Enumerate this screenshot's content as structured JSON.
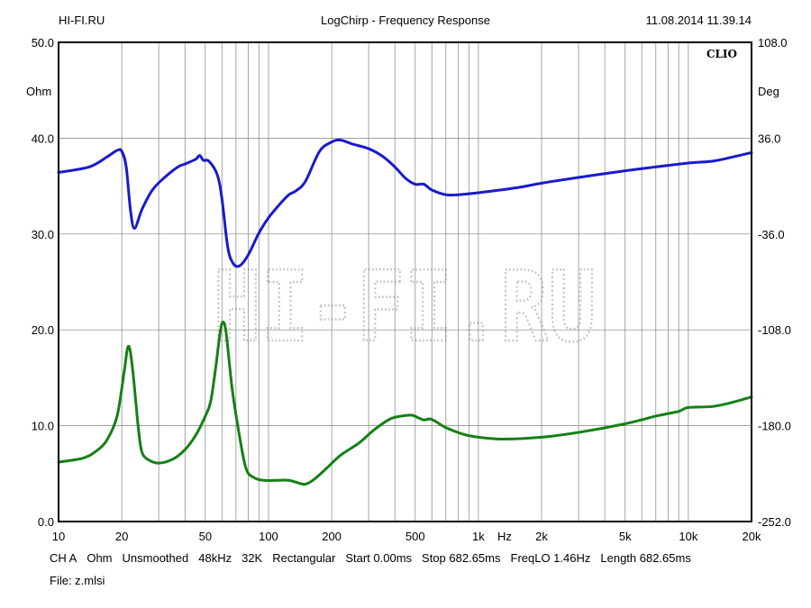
{
  "header": {
    "brand": "HI-FI.RU",
    "title": "LogChirp - Frequency Response",
    "datetime": "11.08.2014 11.39.14"
  },
  "badge": "CLIO",
  "watermark": "HI-FI.RU",
  "footer": {
    "items": [
      "CH A",
      "Ohm",
      "Unsmoothed",
      "48kHz",
      "32K",
      "Rectangular",
      "Start 0.00ms",
      "Stop 682.65ms",
      "FreqLO 1.46Hz",
      "Length 682.65ms"
    ],
    "file": "File: z.mlsi"
  },
  "colors": {
    "impedance": "#1a1acc",
    "phase": "#158015",
    "grid": "#808080"
  },
  "chart_data": {
    "type": "line",
    "x_scale": "log",
    "xlim": [
      10,
      20000
    ],
    "ylim": [
      0,
      50
    ],
    "y2lim": [
      -252,
      108
    ],
    "xlabel": "Hz",
    "ylabel": "Ohm",
    "y2label": "Deg",
    "grid": true,
    "x_ticks": [
      {
        "v": 10,
        "label": "10"
      },
      {
        "v": 20,
        "label": "20"
      },
      {
        "v": 50,
        "label": "50"
      },
      {
        "v": 100,
        "label": "100"
      },
      {
        "v": 200,
        "label": "200"
      },
      {
        "v": 500,
        "label": "500"
      },
      {
        "v": 1000,
        "label": "1k"
      },
      {
        "v": 2000,
        "label": "2k"
      },
      {
        "v": 5000,
        "label": "5k"
      },
      {
        "v": 10000,
        "label": "10k"
      },
      {
        "v": 20000,
        "label": "20k"
      }
    ],
    "y_ticks": [
      "0.0",
      "10.0",
      "20.0",
      "30.0",
      "40.0",
      "50.0"
    ],
    "y2_ticks": [
      "-252.0",
      "-180.0",
      "-108.0",
      "-36.0",
      "36.0",
      "108.0"
    ],
    "series": [
      {
        "axis": "right",
        "points": [
          [
            10,
            10.3
          ],
          [
            14,
            14.4
          ],
          [
            17,
            21.9
          ],
          [
            19,
            26.8
          ],
          [
            20,
            26.1
          ],
          [
            21,
            14.4
          ],
          [
            22,
            -18.0
          ],
          [
            23,
            -31.7
          ],
          [
            25,
            -17.3
          ],
          [
            28,
            -2.9
          ],
          [
            32,
            6.5
          ],
          [
            37,
            14.4
          ],
          [
            40,
            16.6
          ],
          [
            45,
            20.2
          ],
          [
            47,
            23.0
          ],
          [
            49,
            19.4
          ],
          [
            52,
            18.7
          ],
          [
            57,
            8.6
          ],
          [
            60,
            -9.4
          ],
          [
            64,
            -46.1
          ],
          [
            68,
            -58.3
          ],
          [
            73,
            -59.8
          ],
          [
            80,
            -51.8
          ],
          [
            90,
            -35.3
          ],
          [
            100,
            -23.8
          ],
          [
            113,
            -13.7
          ],
          [
            125,
            -6.5
          ],
          [
            135,
            -3.6
          ],
          [
            150,
            3.6
          ],
          [
            175,
            26.1
          ],
          [
            200,
            33.1
          ],
          [
            220,
            34.6
          ],
          [
            250,
            31.7
          ],
          [
            300,
            28.1
          ],
          [
            350,
            22.3
          ],
          [
            400,
            14.4
          ],
          [
            450,
            5.8
          ],
          [
            500,
            1.4
          ],
          [
            550,
            1.4
          ],
          [
            600,
            -2.9
          ],
          [
            700,
            -6.5
          ],
          [
            800,
            -6.5
          ],
          [
            1000,
            -5.0
          ],
          [
            1500,
            -1.4
          ],
          [
            2000,
            2.2
          ],
          [
            3000,
            6.5
          ],
          [
            5000,
            11.5
          ],
          [
            7000,
            14.4
          ],
          [
            10000,
            17.3
          ],
          [
            13000,
            18.7
          ],
          [
            16000,
            21.6
          ],
          [
            20000,
            25.2
          ]
        ]
      },
      {
        "axis": "left",
        "points": [
          [
            10,
            6.2
          ],
          [
            13,
            6.6
          ],
          [
            15,
            7.3
          ],
          [
            17,
            8.5
          ],
          [
            19,
            11.0
          ],
          [
            20.5,
            15.5
          ],
          [
            21.5,
            18.3
          ],
          [
            22.5,
            16.0
          ],
          [
            24,
            9.7
          ],
          [
            25,
            7.2
          ],
          [
            27,
            6.4
          ],
          [
            30,
            6.1
          ],
          [
            35,
            6.5
          ],
          [
            40,
            7.5
          ],
          [
            45,
            9.0
          ],
          [
            50,
            11.0
          ],
          [
            53,
            12.5
          ],
          [
            56,
            16.0
          ],
          [
            59,
            19.9
          ],
          [
            61,
            20.8
          ],
          [
            63,
            19.5
          ],
          [
            67,
            14.0
          ],
          [
            72,
            9.5
          ],
          [
            78,
            5.6
          ],
          [
            85,
            4.6
          ],
          [
            95,
            4.3
          ],
          [
            110,
            4.3
          ],
          [
            125,
            4.3
          ],
          [
            140,
            4.0
          ],
          [
            150,
            3.9
          ],
          [
            165,
            4.4
          ],
          [
            190,
            5.6
          ],
          [
            220,
            6.9
          ],
          [
            270,
            8.2
          ],
          [
            320,
            9.6
          ],
          [
            380,
            10.7
          ],
          [
            430,
            11.0
          ],
          [
            480,
            11.1
          ],
          [
            520,
            10.8
          ],
          [
            550,
            10.6
          ],
          [
            590,
            10.7
          ],
          [
            630,
            10.4
          ],
          [
            700,
            9.8
          ],
          [
            850,
            9.1
          ],
          [
            1000,
            8.8
          ],
          [
            1300,
            8.6
          ],
          [
            2000,
            8.8
          ],
          [
            3000,
            9.3
          ],
          [
            5000,
            10.2
          ],
          [
            7000,
            11.0
          ],
          [
            9000,
            11.5
          ],
          [
            10000,
            11.9
          ],
          [
            13000,
            12.0
          ],
          [
            16000,
            12.4
          ],
          [
            20000,
            13.0
          ]
        ]
      }
    ]
  }
}
